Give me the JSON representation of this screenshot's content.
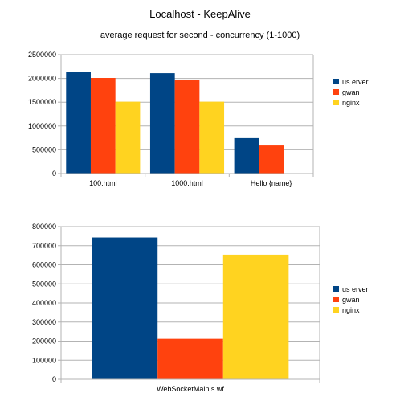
{
  "page": {
    "title": "Localhost - KeepAlive",
    "subtitle": "average request for second - concurrency (1-1000)"
  },
  "colors": {
    "userver": "#004586",
    "gwan": "#ff420e",
    "nginx": "#ffd320",
    "grid": "#b3b3b3",
    "axis": "#b3b3b3"
  },
  "chart_data": [
    {
      "type": "bar",
      "title": "",
      "xlabel": "",
      "ylabel": "",
      "categories": [
        "100.html",
        "1000.html",
        "Hello {name}"
      ],
      "series": [
        {
          "name": "us erver",
          "color": "#004586",
          "values": [
            2130000,
            2110000,
            745000
          ]
        },
        {
          "name": "gwan",
          "color": "#ff420e",
          "values": [
            2010000,
            1960000,
            590000
          ]
        },
        {
          "name": "nginx",
          "color": "#ffd320",
          "values": [
            1510000,
            1510000,
            null
          ]
        }
      ],
      "ylim": [
        0,
        2500000
      ],
      "yticks": [
        0,
        500000,
        1000000,
        1500000,
        2000000,
        2500000
      ],
      "ytick_labels": [
        "0",
        "500000",
        "1000000",
        "1500000",
        "2000000",
        "2500000"
      ],
      "grid": true,
      "legend": "right"
    },
    {
      "type": "bar",
      "title": "",
      "xlabel": "",
      "ylabel": "",
      "categories": [
        "WebSocketMain.s wf"
      ],
      "series": [
        {
          "name": "us erver",
          "color": "#004586",
          "values": [
            743000
          ]
        },
        {
          "name": "gwan",
          "color": "#ff420e",
          "values": [
            212000
          ]
        },
        {
          "name": "nginx",
          "color": "#ffd320",
          "values": [
            653000
          ]
        }
      ],
      "ylim": [
        0,
        800000
      ],
      "yticks": [
        0,
        100000,
        200000,
        300000,
        400000,
        500000,
        600000,
        700000,
        800000
      ],
      "ytick_labels": [
        "0",
        "100000",
        "200000",
        "300000",
        "400000",
        "500000",
        "600000",
        "700000",
        "800000"
      ],
      "grid": true,
      "legend": "right"
    }
  ]
}
